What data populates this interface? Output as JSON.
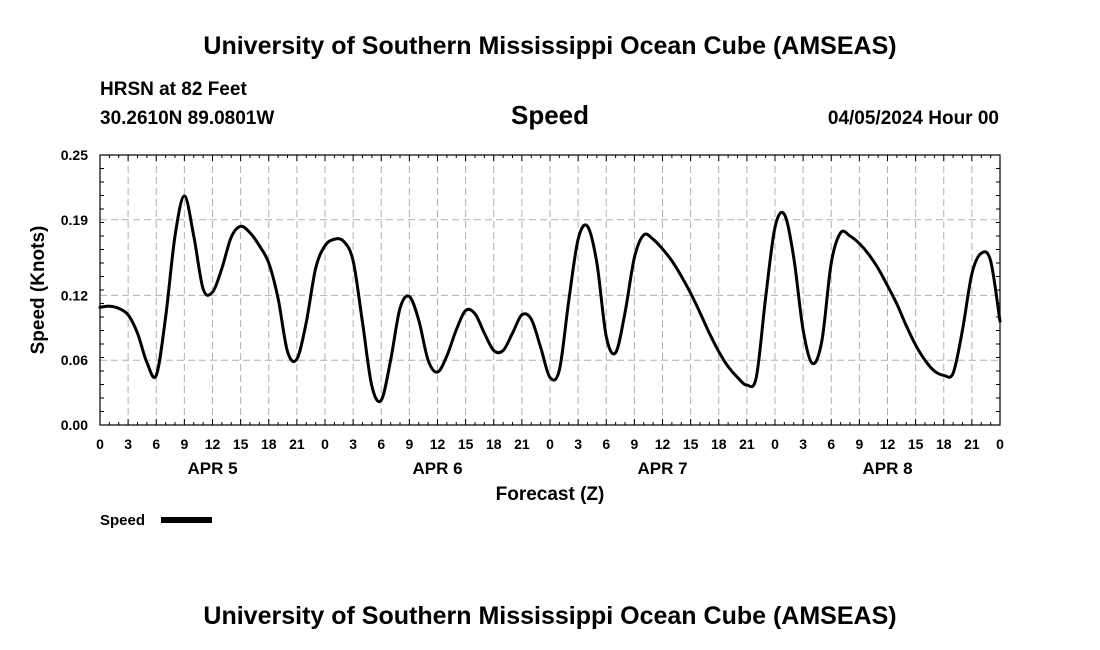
{
  "header": {
    "title": "University of Southern Mississippi Ocean Cube (AMSEAS)",
    "station": "HRSN at 82 Feet",
    "location": "30.2610N  89.0801W",
    "variable": "Speed",
    "datetime": "04/05/2024 Hour 00"
  },
  "footer": {
    "title": "University of Southern Mississippi Ocean Cube (AMSEAS)"
  },
  "legend": {
    "label": "Speed",
    "color": "#000000"
  },
  "chart_data": {
    "type": "line",
    "title": "Speed",
    "xlabel": "Forecast (Z)",
    "ylabel": "Speed (Knots)",
    "ylim": [
      0,
      0.25
    ],
    "xlim": [
      0,
      96
    ],
    "y_ticks": [
      "0.00",
      "0.06",
      "0.12",
      "0.19",
      "0.25"
    ],
    "x_tick_labels": [
      "0",
      "3",
      "6",
      "9",
      "12",
      "15",
      "18",
      "21",
      "0",
      "3",
      "6",
      "9",
      "12",
      "15",
      "18",
      "21",
      "0",
      "3",
      "6",
      "9",
      "12",
      "15",
      "18",
      "21",
      "0",
      "3",
      "6",
      "9",
      "12",
      "15",
      "18",
      "21",
      "0"
    ],
    "day_labels": [
      {
        "label": "APR 5",
        "hour": 12
      },
      {
        "label": "APR 6",
        "hour": 36
      },
      {
        "label": "APR 7",
        "hour": 60
      },
      {
        "label": "APR 8",
        "hour": 84
      }
    ],
    "grid": true,
    "series": [
      {
        "name": "Speed",
        "color": "#000000",
        "x": [
          0,
          1,
          2,
          3,
          4,
          5,
          6,
          7,
          8,
          9,
          10,
          11,
          12,
          13,
          14,
          15,
          16,
          17,
          18,
          19,
          20,
          21,
          22,
          23,
          24,
          25,
          26,
          27,
          28,
          29,
          30,
          31,
          32,
          33,
          34,
          35,
          36,
          37,
          38,
          39,
          40,
          41,
          42,
          43,
          44,
          45,
          46,
          47,
          48,
          49,
          50,
          51,
          52,
          53,
          54,
          55,
          56,
          57,
          58,
          59,
          60,
          61,
          62,
          63,
          64,
          65,
          66,
          67,
          68,
          69,
          70,
          71,
          72,
          73,
          74,
          75,
          76,
          77,
          78,
          79,
          80,
          81,
          82,
          83,
          84,
          85,
          86,
          87,
          88,
          89,
          90,
          91,
          92,
          93,
          94,
          95,
          96
        ],
        "values": [
          0.109,
          0.11,
          0.108,
          0.102,
          0.085,
          0.058,
          0.046,
          0.1,
          0.175,
          0.212,
          0.175,
          0.126,
          0.123,
          0.145,
          0.174,
          0.184,
          0.178,
          0.166,
          0.15,
          0.117,
          0.068,
          0.061,
          0.095,
          0.145,
          0.166,
          0.172,
          0.17,
          0.152,
          0.095,
          0.036,
          0.023,
          0.06,
          0.108,
          0.119,
          0.097,
          0.06,
          0.049,
          0.064,
          0.088,
          0.106,
          0.103,
          0.085,
          0.069,
          0.069,
          0.085,
          0.102,
          0.098,
          0.072,
          0.044,
          0.051,
          0.115,
          0.172,
          0.184,
          0.15,
          0.082,
          0.067,
          0.104,
          0.155,
          0.176,
          0.172,
          0.163,
          0.152,
          0.138,
          0.122,
          0.104,
          0.085,
          0.068,
          0.054,
          0.044,
          0.037,
          0.044,
          0.118,
          0.183,
          0.195,
          0.155,
          0.088,
          0.057,
          0.078,
          0.15,
          0.178,
          0.175,
          0.168,
          0.158,
          0.145,
          0.129,
          0.112,
          0.092,
          0.074,
          0.06,
          0.05,
          0.046,
          0.048,
          0.088,
          0.14,
          0.159,
          0.152,
          0.096
        ]
      }
    ]
  }
}
